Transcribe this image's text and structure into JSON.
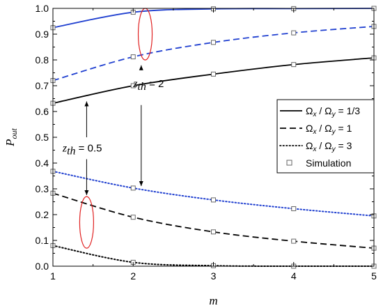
{
  "chart_data": {
    "type": "line",
    "xlabel": "m",
    "ylabel_main": "P",
    "ylabel_sub": "out",
    "xlim": [
      1,
      5
    ],
    "ylim": [
      0,
      1.0
    ],
    "x_ticks": [
      1,
      2,
      3,
      4,
      5
    ],
    "x_tick_labels": [
      "1",
      "2",
      "3",
      "4",
      "5"
    ],
    "y_ticks": [
      0.0,
      0.1,
      0.2,
      0.3,
      0.4,
      0.5,
      0.6,
      0.7,
      0.8,
      0.9,
      1.0
    ],
    "y_tick_labels": [
      "0.0",
      "0.1",
      "0.2",
      "0.3",
      "0.4",
      "0.5",
      "0.6",
      "0.7",
      "0.8",
      "0.9",
      "1.0"
    ],
    "grid": false,
    "legend_position": "right",
    "x": [
      1,
      2,
      3,
      4,
      5
    ],
    "series": [
      {
        "group": "z_th = 2",
        "style": "solid",
        "color": "#1f3fd0",
        "values": [
          0.925,
          0.985,
          0.998,
          0.999,
          1.0
        ]
      },
      {
        "group": "z_th = 2",
        "style": "dashed",
        "color": "#1f3fd0",
        "values": [
          0.72,
          0.812,
          0.868,
          0.905,
          0.93
        ]
      },
      {
        "group": "z_th = 0.5",
        "style": "solid",
        "color": "#000000",
        "values": [
          0.632,
          0.7,
          0.745,
          0.782,
          0.808
        ]
      },
      {
        "group": "z_th = 2",
        "style": "dotted",
        "color": "#1f3fd0",
        "values": [
          0.368,
          0.303,
          0.257,
          0.223,
          0.195
        ]
      },
      {
        "group": "z_th = 0.5",
        "style": "dashed",
        "color": "#000000",
        "values": [
          0.283,
          0.19,
          0.133,
          0.097,
          0.07
        ]
      },
      {
        "group": "z_th = 0.5",
        "style": "dotted",
        "color": "#000000",
        "values": [
          0.08,
          0.015,
          0.002,
          0.0,
          0.0
        ]
      }
    ],
    "simulation_points": {
      "x": [
        1,
        2,
        3,
        4,
        5
      ],
      "values": [
        [
          0.925,
          0.985,
          0.998,
          0.999,
          1.0
        ],
        [
          0.72,
          0.812,
          0.868,
          0.905,
          0.93
        ],
        [
          0.632,
          0.7,
          0.745,
          0.782,
          0.808
        ],
        [
          0.368,
          0.303,
          0.257,
          0.223,
          0.195
        ],
        [
          0.283,
          0.19,
          0.133,
          0.097,
          0.07
        ],
        [
          0.08,
          0.015,
          0.002,
          0.0,
          0.0
        ]
      ]
    },
    "legend": [
      {
        "label_omega": "Ω",
        "sub_x": "x",
        "sep": " / ",
        "sub_y": "y",
        "value": " = 1/3",
        "style": "solid"
      },
      {
        "label_omega": "Ω",
        "sub_x": "x",
        "sep": " / ",
        "sub_y": "y",
        "value": " = 1",
        "style": "dashed"
      },
      {
        "label_omega": "Ω",
        "sub_x": "x",
        "sep": " / ",
        "sub_y": "y",
        "value": " = 3",
        "style": "dotted"
      },
      {
        "label": "Simulation",
        "style": "marker"
      }
    ],
    "annotations": [
      {
        "var": "z",
        "sub": "th",
        "value": " = 2",
        "anchor_x": 2.1,
        "anchor_y": 0.78,
        "points": [
          {
            "x": 2.1,
            "y": 0.79
          },
          {
            "x": 2.1,
            "y": 0.3
          }
        ]
      },
      {
        "var": "z",
        "sub": "th",
        "value": " = 0.5",
        "anchor_x": 1.42,
        "anchor_y": 0.455,
        "points": [
          {
            "x": 1.42,
            "y": 0.65
          },
          {
            "x": 1.42,
            "y": 0.265
          }
        ]
      }
    ],
    "ellipse_color": "#e02020"
  }
}
